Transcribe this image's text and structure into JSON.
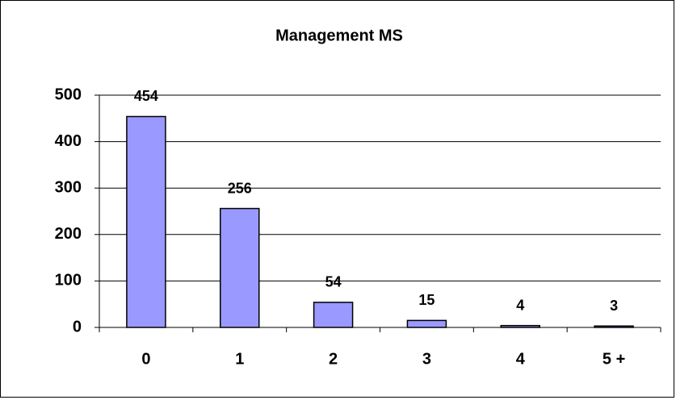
{
  "chart_data": {
    "type": "bar",
    "title": "Management MS",
    "categories": [
      "0",
      "1",
      "2",
      "3",
      "4",
      "5 +"
    ],
    "values": [
      454,
      256,
      54,
      15,
      4,
      3
    ],
    "color": "#9999ff",
    "ylim": [
      0,
      500
    ],
    "yticks": [
      0,
      100,
      200,
      300,
      400,
      500
    ],
    "grid": true
  }
}
